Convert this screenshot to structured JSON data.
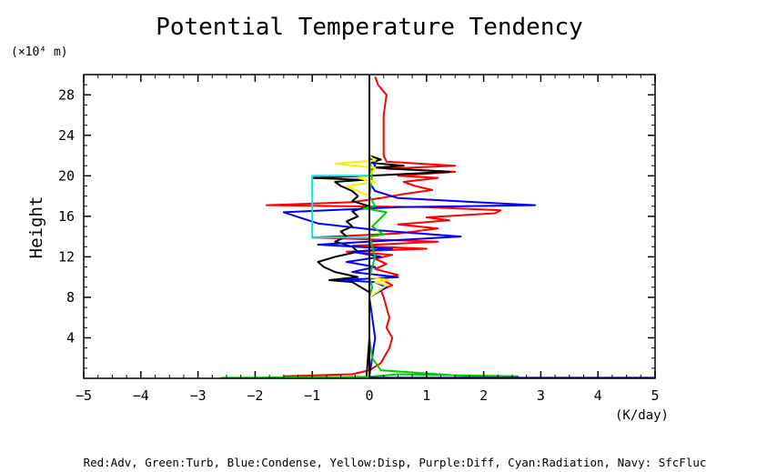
{
  "chart_data": {
    "type": "line",
    "title": "Potential Temperature Tendency",
    "ylabel": "Height",
    "yunit": "(×10⁴ m)",
    "xunit": "(K/day)",
    "xlim": [
      -5,
      5
    ],
    "ylim": [
      0,
      30
    ],
    "xticks": [
      -5,
      -4,
      -3,
      -2,
      -1,
      0,
      1,
      2,
      3,
      4,
      5
    ],
    "xtick_labels": [
      "−5",
      "−4",
      "−3",
      "−2",
      "−1",
      "0",
      "1",
      "2",
      "3",
      "4",
      "5"
    ],
    "yticks": [
      4,
      8,
      12,
      16,
      20,
      24,
      28
    ],
    "ytick_labels": [
      "4",
      "8",
      "12",
      "16",
      "20",
      "24",
      "28"
    ],
    "grid": false,
    "legend_text": "Red:Adv, Green:Turb, Blue:Condense, Yellow:Disp, Purple:Diff, Cyan:Radiation, Navy: SfcFluc",
    "series": [
      {
        "color": "#ff0000",
        "points": [
          [
            -1.5,
            0.2
          ],
          [
            -0.3,
            0.4
          ],
          [
            0,
            0.8
          ],
          [
            0.2,
            1.5
          ],
          [
            0.35,
            3
          ],
          [
            0.4,
            4
          ],
          [
            0.3,
            5
          ],
          [
            0.35,
            6
          ],
          [
            0.3,
            7
          ],
          [
            0.25,
            8
          ],
          [
            0.2,
            8.7
          ],
          [
            0.4,
            9.2
          ],
          [
            0.2,
            9.8
          ],
          [
            0.5,
            10.2
          ],
          [
            0.1,
            10.8
          ],
          [
            0.3,
            11.3
          ],
          [
            0.1,
            11.8
          ],
          [
            0.4,
            12.2
          ],
          [
            -0.4,
            12.5
          ],
          [
            1.0,
            12.8
          ],
          [
            -0.3,
            13.1
          ],
          [
            1.2,
            13.5
          ],
          [
            -1.0,
            13.9
          ],
          [
            0.5,
            14.3
          ],
          [
            1.2,
            14.8
          ],
          [
            0.5,
            15.2
          ],
          [
            1.4,
            15.6
          ],
          [
            1.0,
            15.9
          ],
          [
            2.2,
            16.3
          ],
          [
            2.3,
            16.6
          ],
          [
            1.0,
            16.9
          ],
          [
            -1.8,
            17.1
          ],
          [
            -0.3,
            17.4
          ],
          [
            0.2,
            17.8
          ],
          [
            0.6,
            18.2
          ],
          [
            1.1,
            18.6
          ],
          [
            0.8,
            19.0
          ],
          [
            0.6,
            19.4
          ],
          [
            1.2,
            19.8
          ],
          [
            0.5,
            20.0
          ],
          [
            1.5,
            20.4
          ],
          [
            0.3,
            20.7
          ],
          [
            1.5,
            21.0
          ],
          [
            0.3,
            21.4
          ],
          [
            0.25,
            22
          ],
          [
            0.25,
            24
          ],
          [
            0.25,
            26
          ],
          [
            0.3,
            28
          ],
          [
            0.15,
            29
          ],
          [
            0.1,
            29.8
          ]
        ]
      },
      {
        "color": "#000000",
        "points": [
          [
            -0.05,
            0.2
          ],
          [
            0,
            4
          ],
          [
            0,
            8.5
          ],
          [
            -0.3,
            9.5
          ],
          [
            -0.7,
            9.7
          ],
          [
            -0.2,
            10.0
          ],
          [
            -0.6,
            10.5
          ],
          [
            -0.8,
            11.0
          ],
          [
            -0.9,
            11.5
          ],
          [
            -0.6,
            12.0
          ],
          [
            -0.2,
            12.5
          ],
          [
            -0.3,
            13.0
          ],
          [
            -0.6,
            13.5
          ],
          [
            -0.4,
            14.0
          ],
          [
            -0.5,
            14.5
          ],
          [
            -0.3,
            15.0
          ],
          [
            -0.4,
            15.5
          ],
          [
            -0.2,
            16.0
          ],
          [
            -0.3,
            16.5
          ],
          [
            0,
            17.0
          ],
          [
            -0.3,
            17.5
          ],
          [
            -0.2,
            18.0
          ],
          [
            -0.3,
            18.5
          ],
          [
            -0.5,
            19.0
          ],
          [
            -0.6,
            19.4
          ],
          [
            -0.1,
            19.6
          ],
          [
            -1.0,
            19.8
          ],
          [
            0,
            20.0
          ],
          [
            1.4,
            20.4
          ],
          [
            0.1,
            20.8
          ],
          [
            0.6,
            21.0
          ],
          [
            0,
            21.3
          ],
          [
            0.2,
            21.6
          ],
          [
            0,
            22
          ],
          [
            0,
            24
          ],
          [
            0,
            29.8
          ]
        ]
      },
      {
        "color": "#0000ff",
        "points": [
          [
            0,
            0.2
          ],
          [
            0.1,
            4
          ],
          [
            0,
            8
          ],
          [
            0.3,
            9
          ],
          [
            0.1,
            9.5
          ],
          [
            -0.5,
            9.7
          ],
          [
            0.5,
            10.0
          ],
          [
            -0.3,
            10.5
          ],
          [
            0.1,
            11
          ],
          [
            -0.4,
            11.5
          ],
          [
            0.2,
            12.0
          ],
          [
            -0.3,
            12.5
          ],
          [
            0.4,
            12.8
          ],
          [
            -0.9,
            13.2
          ],
          [
            0.3,
            13.6
          ],
          [
            1.6,
            14.0
          ],
          [
            0.2,
            14.6
          ],
          [
            -0.9,
            15.3
          ],
          [
            -1.5,
            16.4
          ],
          [
            0.5,
            16.9
          ],
          [
            2.9,
            17.1
          ],
          [
            0.5,
            17.8
          ],
          [
            0.1,
            18.5
          ],
          [
            0,
            19.3
          ],
          [
            0,
            20
          ],
          [
            0.1,
            21
          ],
          [
            0,
            22
          ],
          [
            0,
            29.8
          ]
        ]
      },
      {
        "color": "#00cc00",
        "points": [
          [
            -2.6,
            0.05
          ],
          [
            0,
            0.15
          ],
          [
            0.5,
            0.4
          ],
          [
            2.6,
            0.2
          ],
          [
            2.0,
            0.1
          ],
          [
            0.2,
            0.8
          ],
          [
            0.05,
            2
          ],
          [
            0,
            4
          ],
          [
            0,
            8
          ],
          [
            0.05,
            9
          ],
          [
            0,
            10
          ],
          [
            0.1,
            12
          ],
          [
            0,
            14
          ],
          [
            0.25,
            14.2
          ],
          [
            0.05,
            15
          ],
          [
            0.3,
            16.4
          ],
          [
            -0.1,
            16.8
          ],
          [
            0.1,
            17
          ],
          [
            0,
            18
          ],
          [
            0.05,
            20
          ],
          [
            0,
            22
          ],
          [
            0,
            29.8
          ]
        ]
      },
      {
        "color": "#ffee00",
        "points": [
          [
            0,
            8
          ],
          [
            0.3,
            9.2
          ],
          [
            0.1,
            9.5
          ],
          [
            0.35,
            9.7
          ],
          [
            0,
            10
          ],
          [
            0,
            18
          ],
          [
            -0.4,
            19.0
          ],
          [
            0.1,
            19.4
          ],
          [
            -0.2,
            19.8
          ],
          [
            0,
            20.0
          ],
          [
            0.1,
            20.8
          ],
          [
            -0.6,
            21.2
          ],
          [
            0.1,
            21.5
          ],
          [
            0,
            22
          ],
          [
            0,
            24.5
          ],
          [
            0,
            29.8
          ]
        ]
      },
      {
        "color": "#ff00ff",
        "points": [
          [
            0,
            0.2
          ],
          [
            0,
            29.8
          ]
        ]
      },
      {
        "color": "#00e5ee",
        "points": [
          [
            0,
            13.9
          ],
          [
            -1.0,
            13.9
          ],
          [
            -1.0,
            20.0
          ],
          [
            0,
            20.0
          ]
        ]
      },
      {
        "color": "#000080",
        "points": [
          [
            0,
            0.05
          ],
          [
            5,
            0.05
          ]
        ]
      },
      {
        "color": "#000000",
        "points": [
          [
            0,
            0
          ],
          [
            0,
            30
          ]
        ]
      }
    ]
  }
}
